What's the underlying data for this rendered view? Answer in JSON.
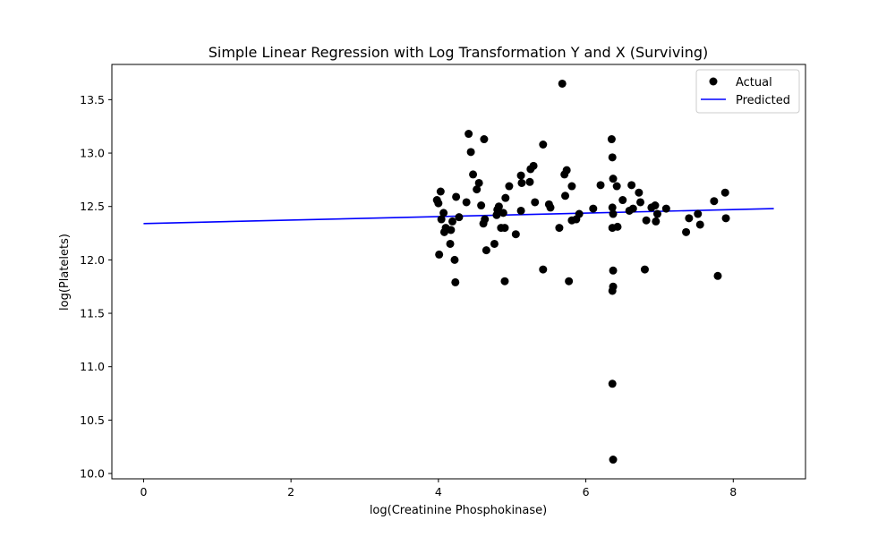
{
  "chart_data": {
    "type": "scatter",
    "title": "Simple Linear Regression with Log Transformation Y and X (Surviving)",
    "xlabel": "log(Creatinine Phosphokinase)",
    "ylabel": "log(Platelets)",
    "xlim": [
      -0.43,
      8.98
    ],
    "ylim": [
      9.95,
      13.83
    ],
    "xticks": [
      0,
      2,
      4,
      6,
      8
    ],
    "yticks": [
      10.0,
      10.5,
      11.0,
      11.5,
      12.0,
      12.5,
      13.0,
      13.5
    ],
    "grid": false,
    "legend_position": "top-right",
    "colors": {
      "actual": "#000000",
      "predicted": "#0000ff"
    },
    "series": [
      {
        "name": "Actual",
        "kind": "scatter",
        "points": [
          [
            3.98,
            12.56
          ],
          [
            4.0,
            12.53
          ],
          [
            4.01,
            12.05
          ],
          [
            4.03,
            12.64
          ],
          [
            4.04,
            12.38
          ],
          [
            4.07,
            12.44
          ],
          [
            4.08,
            12.26
          ],
          [
            4.1,
            12.3
          ],
          [
            4.16,
            12.15
          ],
          [
            4.17,
            12.28
          ],
          [
            4.19,
            12.36
          ],
          [
            4.22,
            12.0
          ],
          [
            4.23,
            11.79
          ],
          [
            4.24,
            12.59
          ],
          [
            4.28,
            12.4
          ],
          [
            4.38,
            12.54
          ],
          [
            4.41,
            13.18
          ],
          [
            4.44,
            13.01
          ],
          [
            4.47,
            12.8
          ],
          [
            4.52,
            12.66
          ],
          [
            4.55,
            12.72
          ],
          [
            4.58,
            12.51
          ],
          [
            4.61,
            12.34
          ],
          [
            4.62,
            13.13
          ],
          [
            4.63,
            12.38
          ],
          [
            4.65,
            12.09
          ],
          [
            4.76,
            12.15
          ],
          [
            4.79,
            12.42
          ],
          [
            4.8,
            12.47
          ],
          [
            4.82,
            12.5
          ],
          [
            4.85,
            12.3
          ],
          [
            4.88,
            12.44
          ],
          [
            4.9,
            11.8
          ],
          [
            4.9,
            12.3
          ],
          [
            4.91,
            12.58
          ],
          [
            4.96,
            12.69
          ],
          [
            5.05,
            12.24
          ],
          [
            5.12,
            12.46
          ],
          [
            5.13,
            12.72
          ],
          [
            5.12,
            12.79
          ],
          [
            5.24,
            12.73
          ],
          [
            5.25,
            12.85
          ],
          [
            5.29,
            12.88
          ],
          [
            5.31,
            12.54
          ],
          [
            5.42,
            13.08
          ],
          [
            5.42,
            11.91
          ],
          [
            5.5,
            12.52
          ],
          [
            5.52,
            12.49
          ],
          [
            5.64,
            12.3
          ],
          [
            5.68,
            13.65
          ],
          [
            5.71,
            12.8
          ],
          [
            5.72,
            12.6
          ],
          [
            5.74,
            12.84
          ],
          [
            5.77,
            11.8
          ],
          [
            5.81,
            12.69
          ],
          [
            5.81,
            12.37
          ],
          [
            5.87,
            12.38
          ],
          [
            5.91,
            12.43
          ],
          [
            6.1,
            12.48
          ],
          [
            6.2,
            12.7
          ],
          [
            6.35,
            13.13
          ],
          [
            6.36,
            12.96
          ],
          [
            6.37,
            12.76
          ],
          [
            6.36,
            12.49
          ],
          [
            6.37,
            12.43
          ],
          [
            6.36,
            12.3
          ],
          [
            6.37,
            11.9
          ],
          [
            6.37,
            11.75
          ],
          [
            6.36,
            11.71
          ],
          [
            6.36,
            10.84
          ],
          [
            6.37,
            10.13
          ],
          [
            6.42,
            12.69
          ],
          [
            6.43,
            12.31
          ],
          [
            6.5,
            12.56
          ],
          [
            6.59,
            12.46
          ],
          [
            6.62,
            12.7
          ],
          [
            6.64,
            12.48
          ],
          [
            6.72,
            12.63
          ],
          [
            6.74,
            12.54
          ],
          [
            6.8,
            11.91
          ],
          [
            6.82,
            12.37
          ],
          [
            6.89,
            12.49
          ],
          [
            6.94,
            12.51
          ],
          [
            6.95,
            12.36
          ],
          [
            6.97,
            12.43
          ],
          [
            7.09,
            12.48
          ],
          [
            7.36,
            12.26
          ],
          [
            7.4,
            12.39
          ],
          [
            7.52,
            12.43
          ],
          [
            7.55,
            12.33
          ],
          [
            7.74,
            12.55
          ],
          [
            7.79,
            11.85
          ],
          [
            7.89,
            12.63
          ],
          [
            7.9,
            12.39
          ]
        ]
      },
      {
        "name": "Predicted",
        "kind": "line",
        "points": [
          [
            0.0,
            12.34
          ],
          [
            8.55,
            12.48
          ]
        ]
      }
    ]
  }
}
